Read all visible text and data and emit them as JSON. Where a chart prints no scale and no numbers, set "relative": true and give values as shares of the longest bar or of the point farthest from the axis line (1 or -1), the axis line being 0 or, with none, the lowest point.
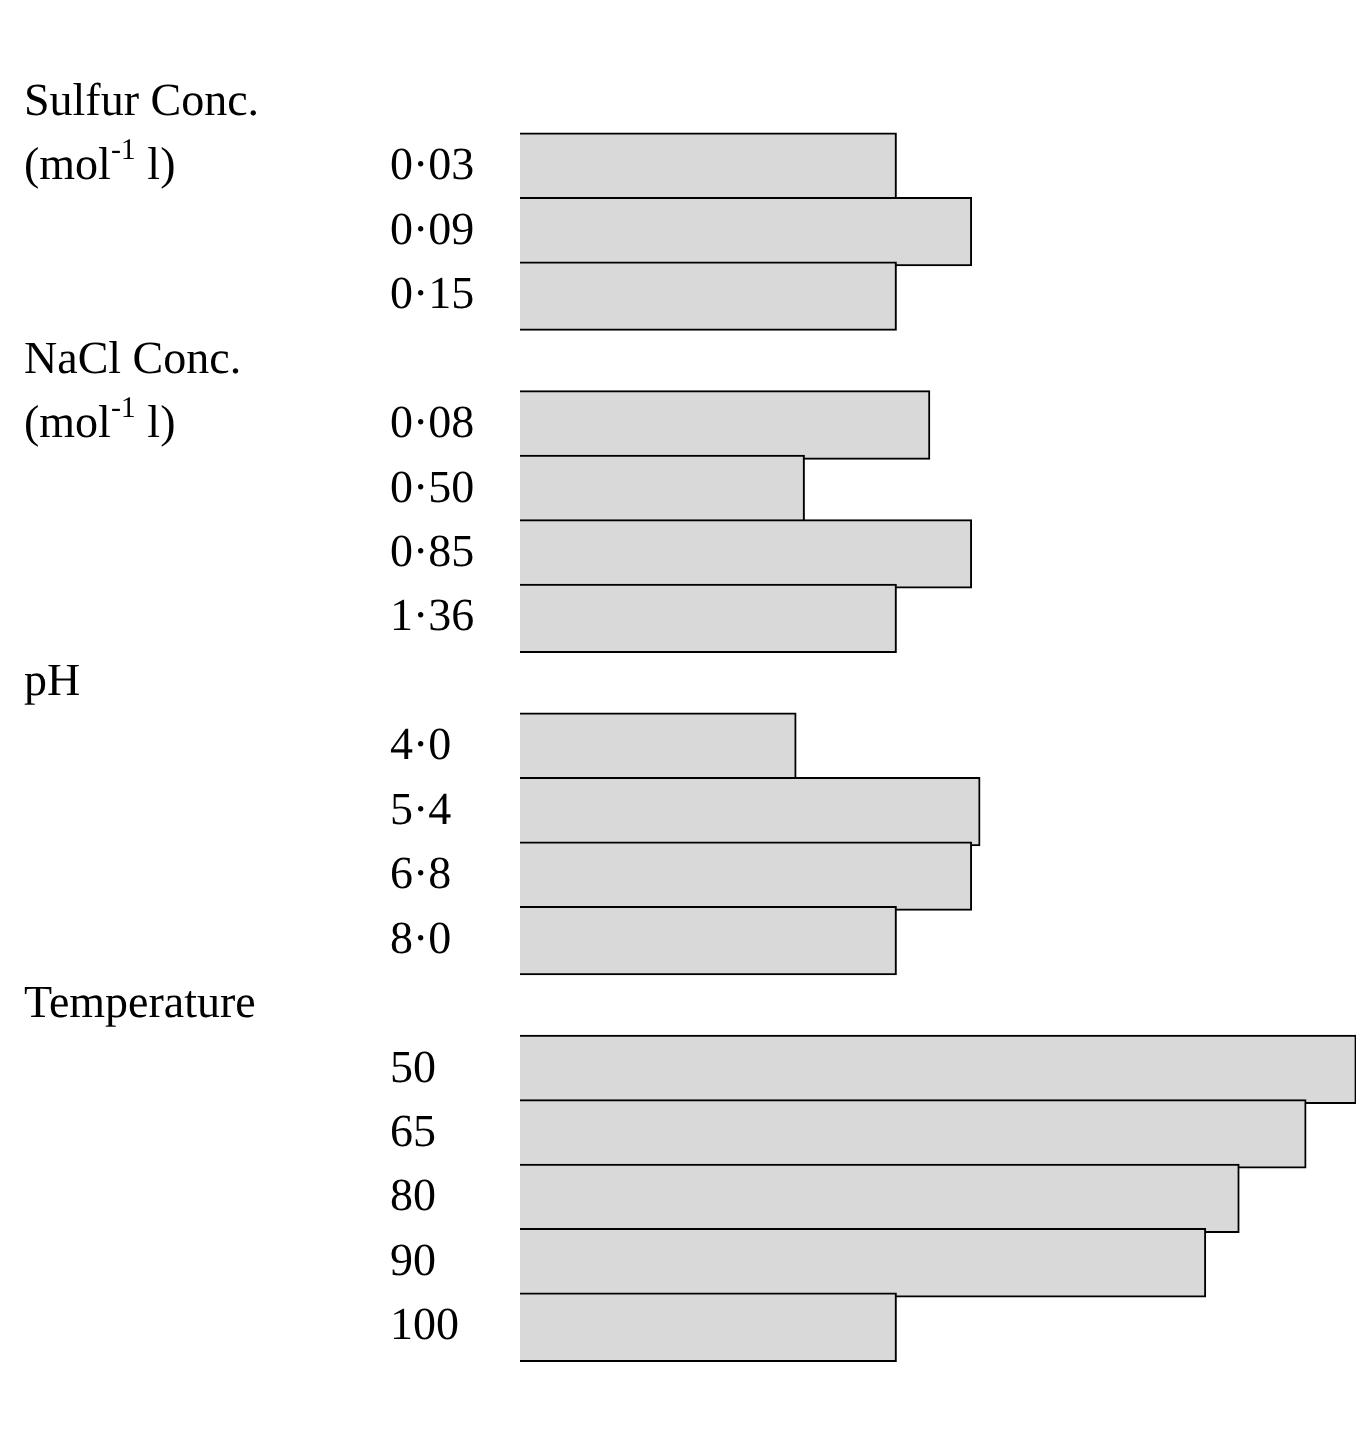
{
  "chart_data": {
    "type": "bar",
    "orientation": "horizontal",
    "relative": true,
    "color": "#d9d9d9",
    "categories": [
      null,
      "0·03",
      "0·09",
      "0·15",
      null,
      "0·08",
      "0·50",
      "0·85",
      "1·36",
      null,
      "4·0",
      "5·4",
      "6·8",
      "8·0",
      null,
      "50",
      "65",
      "80",
      "90",
      "100"
    ],
    "values": [
      null,
      0.45,
      0.54,
      0.45,
      null,
      0.49,
      0.34,
      0.54,
      0.45,
      null,
      0.33,
      0.55,
      0.54,
      0.45,
      null,
      1,
      0.94,
      0.86,
      0.82,
      0.45
    ],
    "annotations": [
      "Sulfur Conc. (mol$^{-1}$ l)",
      "NaCl Conc. (mol$^{-1}$ l)",
      "pH",
      "Temperature"
    ],
    "legend": false,
    "grid": false
  }
}
